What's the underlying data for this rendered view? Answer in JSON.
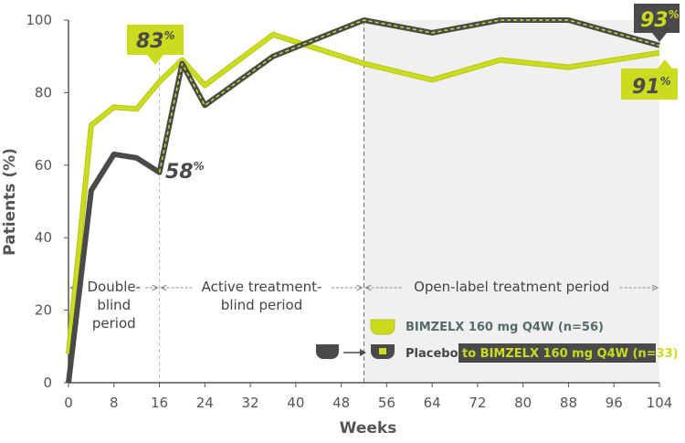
{
  "chart_data": {
    "type": "line",
    "xlabel": "Weeks",
    "ylabel": "Patients (%)",
    "xlim": [
      0,
      104
    ],
    "ylim": [
      0,
      100
    ],
    "x_ticks": [
      0,
      8,
      16,
      24,
      32,
      40,
      48,
      56,
      64,
      72,
      80,
      88,
      96,
      104
    ],
    "y_ticks": [
      0,
      20,
      40,
      60,
      80,
      100
    ],
    "shaded_region_from_week": 52,
    "series": [
      {
        "name": "BIMZELX 160 mg Q4W (n=56)",
        "color": "#cbdc1e",
        "x": [
          0,
          4,
          8,
          12,
          16,
          20,
          24,
          36,
          52,
          64,
          76,
          88,
          104
        ],
        "values": [
          8,
          71,
          76,
          75.5,
          83,
          89,
          82,
          96,
          88,
          83.5,
          89,
          87,
          91
        ]
      },
      {
        "name": "Placebo",
        "legend_suffix": "to BIMZELX 160 mg Q4W (n=33)",
        "color": "#4a4a4a",
        "dash_color": "#cbdc1e",
        "x": [
          0,
          4,
          8,
          12,
          16,
          20,
          24,
          36,
          52,
          64,
          76,
          88,
          104
        ],
        "values": [
          0,
          53,
          63,
          62,
          58,
          88,
          76.5,
          90,
          100,
          96.5,
          100,
          100,
          93
        ]
      }
    ],
    "periods": [
      {
        "label": "Double-\nblind\nperiod",
        "from": 0,
        "to": 16
      },
      {
        "label": "Active treatment-\nblind period",
        "from": 16,
        "to": 52
      },
      {
        "label": "Open-label treatment period",
        "from": 52,
        "to": 104
      }
    ],
    "callouts": [
      {
        "value": "83",
        "unit": "%",
        "at_week": 16,
        "series": 0
      },
      {
        "value": "58",
        "unit": "%",
        "at_week": 16,
        "series": 1
      },
      {
        "value": "93",
        "unit": "%",
        "at_week": 104,
        "series": 1
      },
      {
        "value": "91",
        "unit": "%",
        "at_week": 104,
        "series": 0
      }
    ]
  }
}
